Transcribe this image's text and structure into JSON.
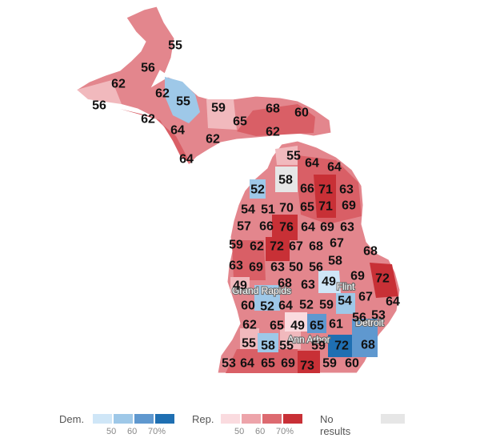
{
  "legend": {
    "dem": {
      "title": "Dem.",
      "colors": [
        "#cfe6f7",
        "#9ec8e8",
        "#5f98cf",
        "#1f6fb2"
      ],
      "ticks": [
        "50",
        "60",
        "70%"
      ]
    },
    "rep": {
      "title": "Rep.",
      "colors": [
        "#fadbdf",
        "#eda4aa",
        "#dd6a70",
        "#c83036"
      ],
      "ticks": [
        "50",
        "60",
        "70%"
      ]
    },
    "none": {
      "title": "No results",
      "color": "#e6e6e6"
    }
  },
  "cities": [
    {
      "name": "Grand Rapids"
    },
    {
      "name": "Flint"
    },
    {
      "name": "Detroit"
    },
    {
      "name": "Ann Arbor"
    }
  ],
  "counties": [
    {
      "party": "rep",
      "value": "55"
    },
    {
      "party": "rep",
      "value": "56"
    },
    {
      "party": "rep",
      "value": "62"
    },
    {
      "party": "rep",
      "value": "62"
    },
    {
      "party": "dem",
      "value": "55"
    },
    {
      "party": "rep",
      "value": "56"
    },
    {
      "party": "rep",
      "value": "62"
    },
    {
      "party": "rep",
      "value": "64"
    },
    {
      "party": "rep",
      "value": "59"
    },
    {
      "party": "rep",
      "value": "68"
    },
    {
      "party": "rep",
      "value": "60"
    },
    {
      "party": "rep",
      "value": "65"
    },
    {
      "party": "rep",
      "value": "62"
    },
    {
      "party": "rep",
      "value": "62"
    },
    {
      "party": "rep",
      "value": "64"
    },
    {
      "party": "rep",
      "value": "55"
    },
    {
      "party": "rep",
      "value": "64"
    },
    {
      "party": "rep",
      "value": "64"
    },
    {
      "party": "rep",
      "value": "58"
    },
    {
      "party": "dem",
      "value": "52"
    },
    {
      "party": "rep",
      "value": "66"
    },
    {
      "party": "rep",
      "value": "71"
    },
    {
      "party": "rep",
      "value": "63"
    },
    {
      "party": "rep",
      "value": "54"
    },
    {
      "party": "rep",
      "value": "51"
    },
    {
      "party": "rep",
      "value": "70"
    },
    {
      "party": "rep",
      "value": "65"
    },
    {
      "party": "rep",
      "value": "71"
    },
    {
      "party": "rep",
      "value": "69"
    },
    {
      "party": "rep",
      "value": "57"
    },
    {
      "party": "rep",
      "value": "66"
    },
    {
      "party": "rep",
      "value": "76"
    },
    {
      "party": "rep",
      "value": "64"
    },
    {
      "party": "rep",
      "value": "69"
    },
    {
      "party": "rep",
      "value": "63"
    },
    {
      "party": "rep",
      "value": "59"
    },
    {
      "party": "rep",
      "value": "62"
    },
    {
      "party": "rep",
      "value": "72"
    },
    {
      "party": "rep",
      "value": "67"
    },
    {
      "party": "rep",
      "value": "68"
    },
    {
      "party": "rep",
      "value": "67"
    },
    {
      "party": "rep",
      "value": "63"
    },
    {
      "party": "rep",
      "value": "69"
    },
    {
      "party": "rep",
      "value": "63"
    },
    {
      "party": "rep",
      "value": "50"
    },
    {
      "party": "rep",
      "value": "56"
    },
    {
      "party": "rep",
      "value": "58"
    },
    {
      "party": "rep",
      "value": "68"
    },
    {
      "party": "rep",
      "value": "49"
    },
    {
      "party": "rep",
      "value": "68"
    },
    {
      "party": "rep",
      "value": "63"
    },
    {
      "party": "dem",
      "value": "49"
    },
    {
      "party": "rep",
      "value": "69"
    },
    {
      "party": "rep",
      "value": "72"
    },
    {
      "party": "rep",
      "value": "60"
    },
    {
      "party": "dem",
      "value": "52"
    },
    {
      "party": "rep",
      "value": "64"
    },
    {
      "party": "rep",
      "value": "52"
    },
    {
      "party": "rep",
      "value": "59"
    },
    {
      "party": "dem",
      "value": "54"
    },
    {
      "party": "rep",
      "value": "67"
    },
    {
      "party": "rep",
      "value": "64"
    },
    {
      "party": "rep",
      "value": "56"
    },
    {
      "party": "rep",
      "value": "53"
    },
    {
      "party": "rep",
      "value": "62"
    },
    {
      "party": "rep",
      "value": "65"
    },
    {
      "party": "rep",
      "value": "49"
    },
    {
      "party": "dem",
      "value": "65"
    },
    {
      "party": "rep",
      "value": "61"
    },
    {
      "party": "rep",
      "value": "55"
    },
    {
      "party": "dem",
      "value": "58"
    },
    {
      "party": "rep",
      "value": "55"
    },
    {
      "party": "rep",
      "value": "59"
    },
    {
      "party": "dem",
      "value": "72"
    },
    {
      "party": "dem",
      "value": "68"
    },
    {
      "party": "rep",
      "value": "53"
    },
    {
      "party": "rep",
      "value": "64"
    },
    {
      "party": "rep",
      "value": "65"
    },
    {
      "party": "rep",
      "value": "69"
    },
    {
      "party": "rep",
      "value": "73"
    },
    {
      "party": "rep",
      "value": "59"
    },
    {
      "party": "rep",
      "value": "60"
    }
  ]
}
